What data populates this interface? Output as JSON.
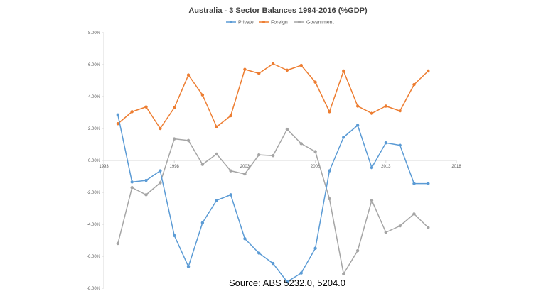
{
  "chart_data": {
    "type": "line",
    "title": "Australia - 3 Sector Balances 1994-2016 (%GDP)",
    "source": "Source: ABS 5232.0,  5204.0",
    "xlabel": "",
    "ylabel": "",
    "xlim": [
      1993,
      2018
    ],
    "ylim": [
      -8,
      8
    ],
    "x_ticks": [
      1993,
      1998,
      2003,
      2008,
      2013,
      2018
    ],
    "x_tick_labels": [
      "1993",
      "1998",
      "2003",
      "2008",
      "2013",
      "2018"
    ],
    "y_ticks": [
      8,
      6,
      4,
      2,
      0,
      -2,
      -4,
      -6,
      -8
    ],
    "y_tick_labels": [
      "8.00%",
      "6.00%",
      "4.00%",
      "2.00%",
      "0.00%",
      "-2.00%",
      "-4.00%",
      "-6.00%",
      "-8.00%"
    ],
    "grid": false,
    "legend": "top-center",
    "x": [
      1994,
      1995,
      1996,
      1997,
      1998,
      1999,
      2000,
      2001,
      2002,
      2003,
      2004,
      2005,
      2006,
      2007,
      2008,
      2009,
      2010,
      2011,
      2012,
      2013,
      2014,
      2015,
      2016
    ],
    "series": [
      {
        "name": "Private",
        "color": "#5B9BD5",
        "values": [
          2.85,
          -1.35,
          -1.25,
          -0.65,
          -4.7,
          -6.65,
          -3.9,
          -2.5,
          -2.15,
          -4.9,
          -5.8,
          -6.45,
          -7.6,
          -7.05,
          -5.5,
          -0.65,
          1.45,
          2.2,
          -0.45,
          1.1,
          0.95,
          -1.45,
          -1.45
        ]
      },
      {
        "name": "Foreign",
        "color": "#ED7D31",
        "values": [
          2.3,
          3.05,
          3.35,
          2.0,
          3.3,
          5.35,
          4.1,
          2.1,
          2.8,
          5.7,
          5.45,
          6.05,
          5.65,
          5.95,
          4.9,
          3.05,
          5.6,
          3.4,
          2.95,
          3.4,
          3.1,
          4.75,
          5.6
        ]
      },
      {
        "name": "Government",
        "color": "#A5A5A5",
        "values": [
          -5.2,
          -1.7,
          -2.15,
          -1.4,
          1.35,
          1.25,
          -0.25,
          0.4,
          -0.65,
          -0.85,
          0.35,
          0.3,
          1.95,
          1.05,
          0.55,
          -2.4,
          -7.1,
          -5.65,
          -2.5,
          -4.5,
          -4.1,
          -3.35,
          -4.2
        ]
      }
    ]
  }
}
